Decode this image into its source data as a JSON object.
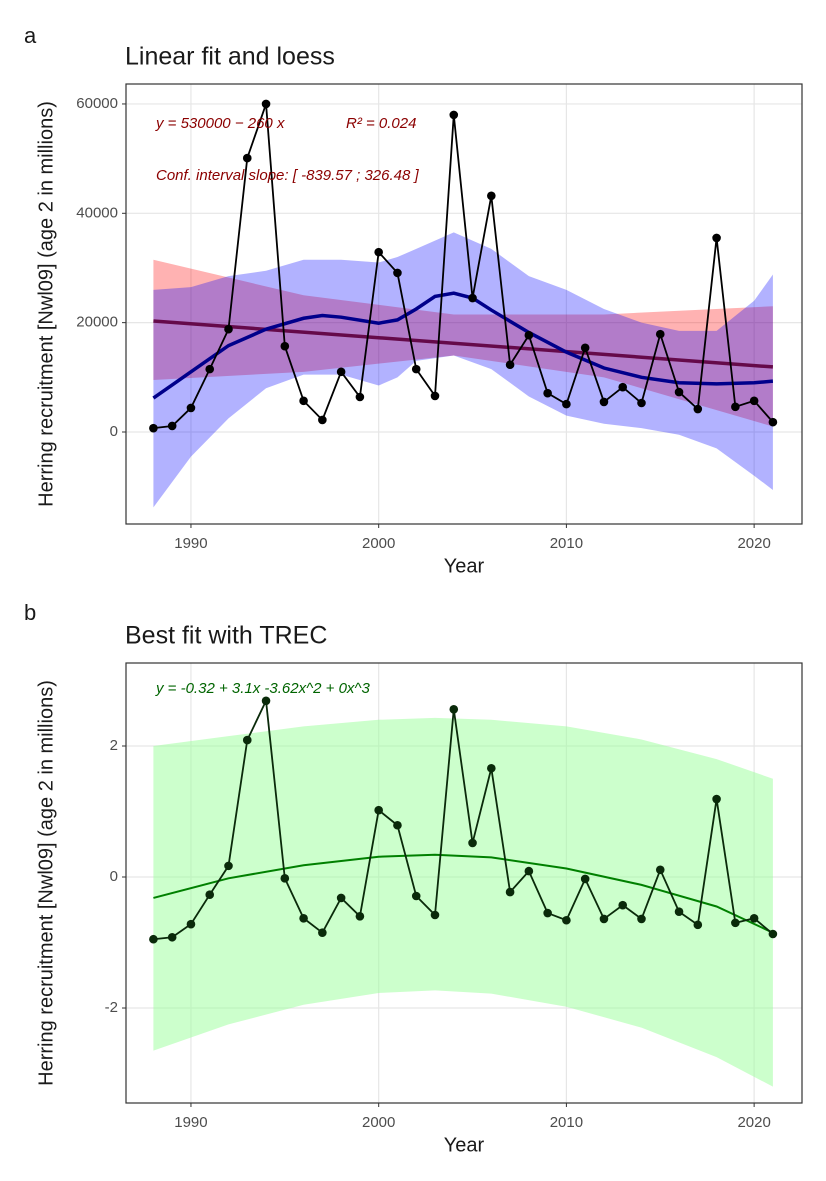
{
  "chart_data": [
    {
      "type": "line",
      "panel_label": "a",
      "title": "Linear fit and loess",
      "x_label": "Year",
      "y_label": "Herring recruitment [Nwl09] (age 2 in millions)",
      "annotations": [
        {
          "text": "y = 530000 − 260 x",
          "color": "#8b0000"
        },
        {
          "text": "R² = 0.024",
          "color": "#8b0000"
        },
        {
          "text": "Conf. interval slope:  [ -839.57 ; 326.48 ]",
          "color": "#8b0000"
        }
      ],
      "xlim": [
        1986.54,
        2022.55
      ],
      "xticks": [
        1990,
        2000,
        2010,
        2020
      ],
      "ylim": [
        -16830,
        63650
      ],
      "yticks": [
        0,
        20000,
        40000,
        60000
      ],
      "grid": true,
      "x": [
        1988,
        1989,
        1990,
        1991,
        1992,
        1993,
        1994,
        1995,
        1996,
        1997,
        1998,
        1999,
        2000,
        2001,
        2002,
        2003,
        2004,
        2005,
        2006,
        2007,
        2008,
        2009,
        2010,
        2011,
        2012,
        2013,
        2014,
        2015,
        2016,
        2017,
        2018,
        2019,
        2020,
        2021
      ],
      "series": [
        {
          "color": "#000000",
          "values": [
            700,
            1100,
            4400,
            11500,
            18800,
            50100,
            60000,
            15700,
            5700,
            2200,
            11000,
            6400,
            32900,
            29100,
            11500,
            6600,
            58000,
            24500,
            43200,
            12300,
            17700,
            7100,
            5100,
            15400,
            5500,
            8200,
            5300,
            17900,
            7300,
            4200,
            35500,
            4600,
            5700,
            1800
          ]
        }
      ],
      "bands": [
        {
          "color": "#ff0000",
          "x": [
            1988,
            1996,
            2004,
            2012,
            2021
          ],
          "lower": [
            9500,
            11000,
            14000,
            10000,
            1000
          ],
          "upper": [
            31500,
            25000,
            21500,
            21500,
            23000
          ]
        },
        {
          "color": "#0000ff",
          "x": [
            1988,
            1990,
            1992,
            1994,
            1996,
            1998,
            2000,
            2001,
            2002,
            2004,
            2006,
            2008,
            2010,
            2012,
            2014,
            2016,
            2018,
            2020,
            2021
          ],
          "lower": [
            -13800,
            -4500,
            2500,
            8000,
            10500,
            10500,
            8500,
            10000,
            13000,
            14000,
            11500,
            6500,
            3000,
            1500,
            700,
            -500,
            -3000,
            -8000,
            -10600
          ],
          "upper": [
            26000,
            26500,
            28500,
            29500,
            31500,
            31500,
            31000,
            32000,
            33500,
            36500,
            33500,
            28500,
            26000,
            22500,
            20000,
            18500,
            18500,
            24000,
            28800
          ]
        }
      ],
      "fits": [
        {
          "color": "#650a4a",
          "x": [
            1988,
            2021
          ],
          "values": [
            20300,
            11900
          ]
        },
        {
          "color": "#00008b",
          "x": [
            1988,
            1990,
            1992,
            1994,
            1996,
            1997,
            1998,
            2000,
            2001,
            2002,
            2003,
            2004,
            2005,
            2006,
            2008,
            2010,
            2012,
            2014,
            2016,
            2018,
            2020,
            2021
          ],
          "values": [
            6200,
            11000,
            15800,
            18800,
            20800,
            21300,
            21000,
            19900,
            20500,
            22500,
            24800,
            25400,
            24500,
            22300,
            18200,
            14600,
            11700,
            10000,
            9000,
            8800,
            9000,
            9300
          ]
        }
      ]
    },
    {
      "type": "line",
      "panel_label": "b",
      "title": "Best fit with TREC",
      "x_label": "Year",
      "y_label": "Herring recruitment [Nwl09] (age 2 in millions)",
      "annotations": [
        {
          "text": "y =  -0.32  + 3.1x   -3.62x^2  + 0x^3",
          "color": "#006400"
        }
      ],
      "xlim": [
        1986.54,
        2022.55
      ],
      "xticks": [
        1990,
        2000,
        2010,
        2020
      ],
      "ylim": [
        -3.45,
        3.267
      ],
      "yticks": [
        -2,
        0,
        2
      ],
      "grid": true,
      "x": [
        1988,
        1989,
        1990,
        1991,
        1992,
        1993,
        1994,
        1995,
        1996,
        1997,
        1998,
        1999,
        2000,
        2001,
        2002,
        2003,
        2004,
        2005,
        2006,
        2007,
        2008,
        2009,
        2010,
        2011,
        2012,
        2013,
        2014,
        2015,
        2016,
        2017,
        2018,
        2019,
        2020,
        2021
      ],
      "series": [
        {
          "color": "#0a2a0a",
          "values": [
            -0.95,
            -0.92,
            -0.72,
            -0.27,
            0.17,
            2.09,
            2.69,
            -0.02,
            -0.63,
            -0.85,
            -0.32,
            -0.6,
            1.02,
            0.79,
            -0.29,
            -0.58,
            2.56,
            0.52,
            1.66,
            -0.23,
            0.09,
            -0.55,
            -0.66,
            -0.03,
            -0.64,
            -0.43,
            -0.64,
            0.11,
            -0.53,
            -0.73,
            1.19,
            -0.7,
            -0.63,
            -0.87
          ]
        }
      ],
      "bands": [
        {
          "color": "#99ff99",
          "x": [
            1988,
            1992,
            1996,
            2000,
            2003,
            2006,
            2010,
            2014,
            2018,
            2021
          ],
          "lower": [
            -2.65,
            -2.25,
            -1.95,
            -1.77,
            -1.73,
            -1.78,
            -1.98,
            -2.3,
            -2.75,
            -3.2
          ],
          "upper": [
            2.0,
            2.15,
            2.3,
            2.4,
            2.43,
            2.4,
            2.3,
            2.1,
            1.8,
            1.5
          ]
        }
      ],
      "fits": [
        {
          "color": "#008000",
          "x": [
            1988,
            1992,
            1996,
            2000,
            2003,
            2006,
            2010,
            2014,
            2018,
            2021
          ],
          "values": [
            -0.32,
            -0.02,
            0.18,
            0.31,
            0.34,
            0.3,
            0.13,
            -0.12,
            -0.45,
            -0.85
          ]
        }
      ]
    }
  ]
}
